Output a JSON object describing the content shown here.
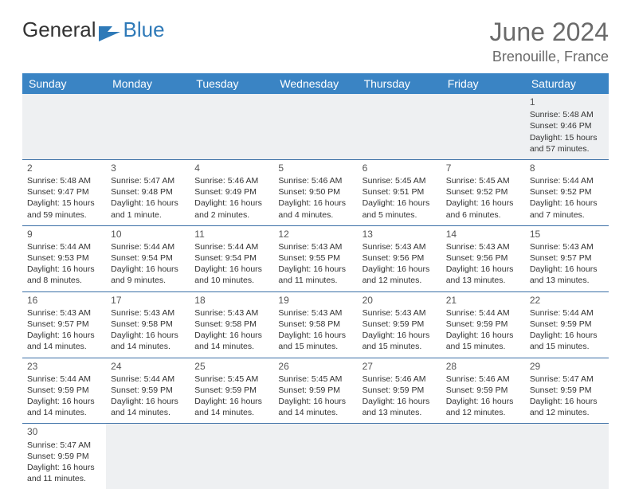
{
  "brand": {
    "part1": "General",
    "part2": "Blue"
  },
  "header": {
    "month": "June 2024",
    "location": "Brenouille, France"
  },
  "daynames": [
    "Sunday",
    "Monday",
    "Tuesday",
    "Wednesday",
    "Thursday",
    "Friday",
    "Saturday"
  ],
  "colors": {
    "header_bg": "#3a84c4",
    "header_fg": "#ffffff",
    "rule": "#3a6ea5",
    "muted": "#6a6a6a"
  },
  "weeks": [
    [
      null,
      null,
      null,
      null,
      null,
      null,
      {
        "n": "1",
        "sunrise": "Sunrise: 5:48 AM",
        "sunset": "Sunset: 9:46 PM",
        "daylight": "Daylight: 15 hours and 57 minutes."
      }
    ],
    [
      {
        "n": "2",
        "sunrise": "Sunrise: 5:48 AM",
        "sunset": "Sunset: 9:47 PM",
        "daylight": "Daylight: 15 hours and 59 minutes."
      },
      {
        "n": "3",
        "sunrise": "Sunrise: 5:47 AM",
        "sunset": "Sunset: 9:48 PM",
        "daylight": "Daylight: 16 hours and 1 minute."
      },
      {
        "n": "4",
        "sunrise": "Sunrise: 5:46 AM",
        "sunset": "Sunset: 9:49 PM",
        "daylight": "Daylight: 16 hours and 2 minutes."
      },
      {
        "n": "5",
        "sunrise": "Sunrise: 5:46 AM",
        "sunset": "Sunset: 9:50 PM",
        "daylight": "Daylight: 16 hours and 4 minutes."
      },
      {
        "n": "6",
        "sunrise": "Sunrise: 5:45 AM",
        "sunset": "Sunset: 9:51 PM",
        "daylight": "Daylight: 16 hours and 5 minutes."
      },
      {
        "n": "7",
        "sunrise": "Sunrise: 5:45 AM",
        "sunset": "Sunset: 9:52 PM",
        "daylight": "Daylight: 16 hours and 6 minutes."
      },
      {
        "n": "8",
        "sunrise": "Sunrise: 5:44 AM",
        "sunset": "Sunset: 9:52 PM",
        "daylight": "Daylight: 16 hours and 7 minutes."
      }
    ],
    [
      {
        "n": "9",
        "sunrise": "Sunrise: 5:44 AM",
        "sunset": "Sunset: 9:53 PM",
        "daylight": "Daylight: 16 hours and 8 minutes."
      },
      {
        "n": "10",
        "sunrise": "Sunrise: 5:44 AM",
        "sunset": "Sunset: 9:54 PM",
        "daylight": "Daylight: 16 hours and 9 minutes."
      },
      {
        "n": "11",
        "sunrise": "Sunrise: 5:44 AM",
        "sunset": "Sunset: 9:54 PM",
        "daylight": "Daylight: 16 hours and 10 minutes."
      },
      {
        "n": "12",
        "sunrise": "Sunrise: 5:43 AM",
        "sunset": "Sunset: 9:55 PM",
        "daylight": "Daylight: 16 hours and 11 minutes."
      },
      {
        "n": "13",
        "sunrise": "Sunrise: 5:43 AM",
        "sunset": "Sunset: 9:56 PM",
        "daylight": "Daylight: 16 hours and 12 minutes."
      },
      {
        "n": "14",
        "sunrise": "Sunrise: 5:43 AM",
        "sunset": "Sunset: 9:56 PM",
        "daylight": "Daylight: 16 hours and 13 minutes."
      },
      {
        "n": "15",
        "sunrise": "Sunrise: 5:43 AM",
        "sunset": "Sunset: 9:57 PM",
        "daylight": "Daylight: 16 hours and 13 minutes."
      }
    ],
    [
      {
        "n": "16",
        "sunrise": "Sunrise: 5:43 AM",
        "sunset": "Sunset: 9:57 PM",
        "daylight": "Daylight: 16 hours and 14 minutes."
      },
      {
        "n": "17",
        "sunrise": "Sunrise: 5:43 AM",
        "sunset": "Sunset: 9:58 PM",
        "daylight": "Daylight: 16 hours and 14 minutes."
      },
      {
        "n": "18",
        "sunrise": "Sunrise: 5:43 AM",
        "sunset": "Sunset: 9:58 PM",
        "daylight": "Daylight: 16 hours and 14 minutes."
      },
      {
        "n": "19",
        "sunrise": "Sunrise: 5:43 AM",
        "sunset": "Sunset: 9:58 PM",
        "daylight": "Daylight: 16 hours and 15 minutes."
      },
      {
        "n": "20",
        "sunrise": "Sunrise: 5:43 AM",
        "sunset": "Sunset: 9:59 PM",
        "daylight": "Daylight: 16 hours and 15 minutes."
      },
      {
        "n": "21",
        "sunrise": "Sunrise: 5:44 AM",
        "sunset": "Sunset: 9:59 PM",
        "daylight": "Daylight: 16 hours and 15 minutes."
      },
      {
        "n": "22",
        "sunrise": "Sunrise: 5:44 AM",
        "sunset": "Sunset: 9:59 PM",
        "daylight": "Daylight: 16 hours and 15 minutes."
      }
    ],
    [
      {
        "n": "23",
        "sunrise": "Sunrise: 5:44 AM",
        "sunset": "Sunset: 9:59 PM",
        "daylight": "Daylight: 16 hours and 14 minutes."
      },
      {
        "n": "24",
        "sunrise": "Sunrise: 5:44 AM",
        "sunset": "Sunset: 9:59 PM",
        "daylight": "Daylight: 16 hours and 14 minutes."
      },
      {
        "n": "25",
        "sunrise": "Sunrise: 5:45 AM",
        "sunset": "Sunset: 9:59 PM",
        "daylight": "Daylight: 16 hours and 14 minutes."
      },
      {
        "n": "26",
        "sunrise": "Sunrise: 5:45 AM",
        "sunset": "Sunset: 9:59 PM",
        "daylight": "Daylight: 16 hours and 14 minutes."
      },
      {
        "n": "27",
        "sunrise": "Sunrise: 5:46 AM",
        "sunset": "Sunset: 9:59 PM",
        "daylight": "Daylight: 16 hours and 13 minutes."
      },
      {
        "n": "28",
        "sunrise": "Sunrise: 5:46 AM",
        "sunset": "Sunset: 9:59 PM",
        "daylight": "Daylight: 16 hours and 12 minutes."
      },
      {
        "n": "29",
        "sunrise": "Sunrise: 5:47 AM",
        "sunset": "Sunset: 9:59 PM",
        "daylight": "Daylight: 16 hours and 12 minutes."
      }
    ],
    [
      {
        "n": "30",
        "sunrise": "Sunrise: 5:47 AM",
        "sunset": "Sunset: 9:59 PM",
        "daylight": "Daylight: 16 hours and 11 minutes."
      },
      null,
      null,
      null,
      null,
      null,
      null
    ]
  ]
}
